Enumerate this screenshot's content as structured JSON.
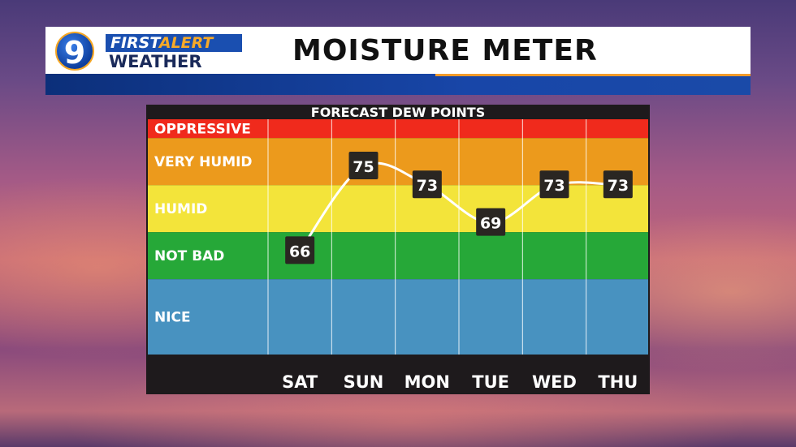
{
  "header": {
    "logo_number": "9",
    "logo_first": "FIRST",
    "logo_alert": "ALERT",
    "logo_weather": "WEATHER",
    "title": "MOISTURE METER"
  },
  "chart_data": {
    "type": "line",
    "title": "FORECAST DEW POINTS",
    "categories": [
      "SAT",
      "SUN",
      "MON",
      "TUE",
      "WED",
      "THU"
    ],
    "series": [
      {
        "values": [
          66,
          75,
          73,
          69,
          73,
          73
        ]
      }
    ],
    "ylim": [
      55,
      80
    ],
    "bands": [
      {
        "label": "OPPRESSIVE",
        "from": 78,
        "to": 80,
        "color": "#f02a1c"
      },
      {
        "label": "VERY HUMID",
        "from": 73,
        "to": 78,
        "color": "#ec9a1c"
      },
      {
        "label": "HUMID",
        "from": 68,
        "to": 73,
        "color": "#f3e43a"
      },
      {
        "label": "NOT BAD",
        "from": 63,
        "to": 68,
        "color": "#26a838"
      },
      {
        "label": "NICE",
        "from": 55,
        "to": 63,
        "color": "#4892c0"
      }
    ],
    "line_color": "#ffffff",
    "label_box_color": "#2a2622",
    "grid": true
  }
}
